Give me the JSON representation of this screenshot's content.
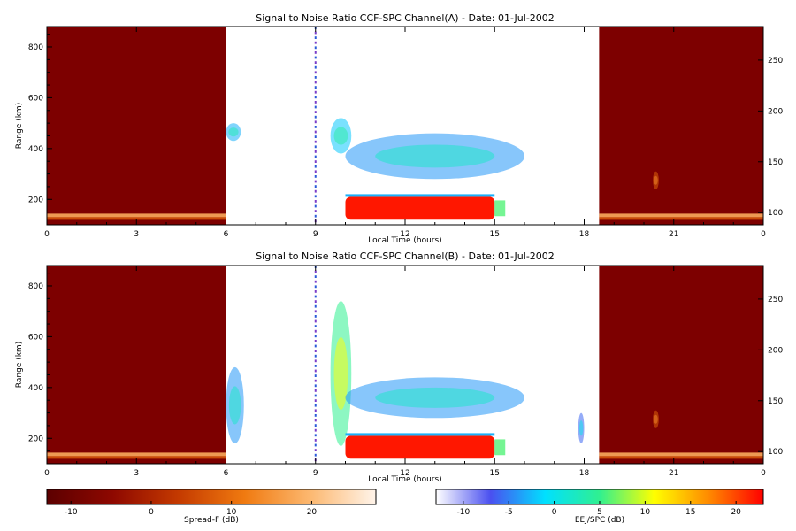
{
  "chart_data": [
    {
      "type": "heatmap",
      "title": "Signal to Noise Ratio CCF-SPC Channel(A) - Date: 01-Jul-2002",
      "xlabel": "Local Time (hours)",
      "ylabel": "Range (km)",
      "xlim": [
        0,
        24
      ],
      "ylim": [
        100,
        880
      ],
      "x_ticks": [
        "0",
        "3",
        "6",
        "9",
        "12",
        "15",
        "18",
        "21",
        "0"
      ],
      "y_ticks": [
        "200",
        "400",
        "600",
        "800"
      ],
      "y2_ticks": [
        "100",
        "150",
        "200",
        "250"
      ],
      "y2lim": [
        88,
        283
      ],
      "night_blocks": [
        [
          0,
          6
        ],
        [
          18.5,
          24
        ]
      ],
      "features": [
        {
          "x": [
            6.0,
            6.5
          ],
          "y": [
            430,
            500
          ],
          "snr_db": -3
        },
        {
          "x": [
            9.5,
            10.2
          ],
          "y": [
            380,
            520
          ],
          "snr_db": -2
        },
        {
          "x": [
            10.0,
            16.0
          ],
          "y": [
            280,
            460
          ],
          "snr_db": -4
        },
        {
          "x": [
            10.0,
            15.0
          ],
          "y": [
            120,
            210
          ],
          "snr_db": 22
        },
        {
          "x": [
            20.3,
            20.5
          ],
          "y": [
            240,
            310
          ],
          "snr_db": 8
        }
      ]
    },
    {
      "type": "heatmap",
      "title": "Signal to Noise Ratio CCF-SPC Channel(B) - Date: 01-Jul-2002",
      "xlabel": "Local Time (hours)",
      "ylabel": "Range (km)",
      "xlim": [
        0,
        24
      ],
      "ylim": [
        100,
        880
      ],
      "x_ticks": [
        "0",
        "3",
        "6",
        "9",
        "12",
        "15",
        "18",
        "21",
        "0"
      ],
      "y_ticks": [
        "200",
        "400",
        "600",
        "800"
      ],
      "y2_ticks": [
        "100",
        "150",
        "200",
        "250"
      ],
      "y2lim": [
        88,
        283
      ],
      "night_blocks": [
        [
          0,
          6
        ],
        [
          18.5,
          24
        ]
      ],
      "features": [
        {
          "x": [
            6.0,
            6.6
          ],
          "y": [
            180,
            480
          ],
          "snr_db": -4
        },
        {
          "x": [
            9.5,
            10.2
          ],
          "y": [
            170,
            740
          ],
          "snr_db": 5
        },
        {
          "x": [
            10.0,
            16.0
          ],
          "y": [
            280,
            440
          ],
          "snr_db": -4
        },
        {
          "x": [
            10.0,
            15.0
          ],
          "y": [
            120,
            210
          ],
          "snr_db": 22
        },
        {
          "x": [
            17.8,
            18.0
          ],
          "y": [
            180,
            300
          ],
          "snr_db": -6
        },
        {
          "x": [
            20.3,
            20.5
          ],
          "y": [
            240,
            310
          ],
          "snr_db": 8
        }
      ]
    }
  ],
  "colorbars": [
    {
      "label": "Spread-F (dB)",
      "ticks": [
        "-10",
        "0",
        "10",
        "20"
      ],
      "range": [
        -13,
        28
      ],
      "colors": [
        "#5c0000",
        "#8e0800",
        "#c43a00",
        "#f07a10",
        "#fcb870",
        "#fff4ea"
      ]
    },
    {
      "label": "EEJ/SPC (dB)",
      "ticks": [
        "-10",
        "-5",
        "0",
        "5",
        "10",
        "15",
        "20"
      ],
      "range": [
        -13,
        23
      ],
      "colors": [
        "#ffffff",
        "#4a50f0",
        "#00e0ff",
        "#30f090",
        "#ffff00",
        "#ff8a00",
        "#ff0000"
      ]
    }
  ],
  "colors": {
    "night_fill": "#7d0000",
    "strong_echo": "#ff0000"
  }
}
